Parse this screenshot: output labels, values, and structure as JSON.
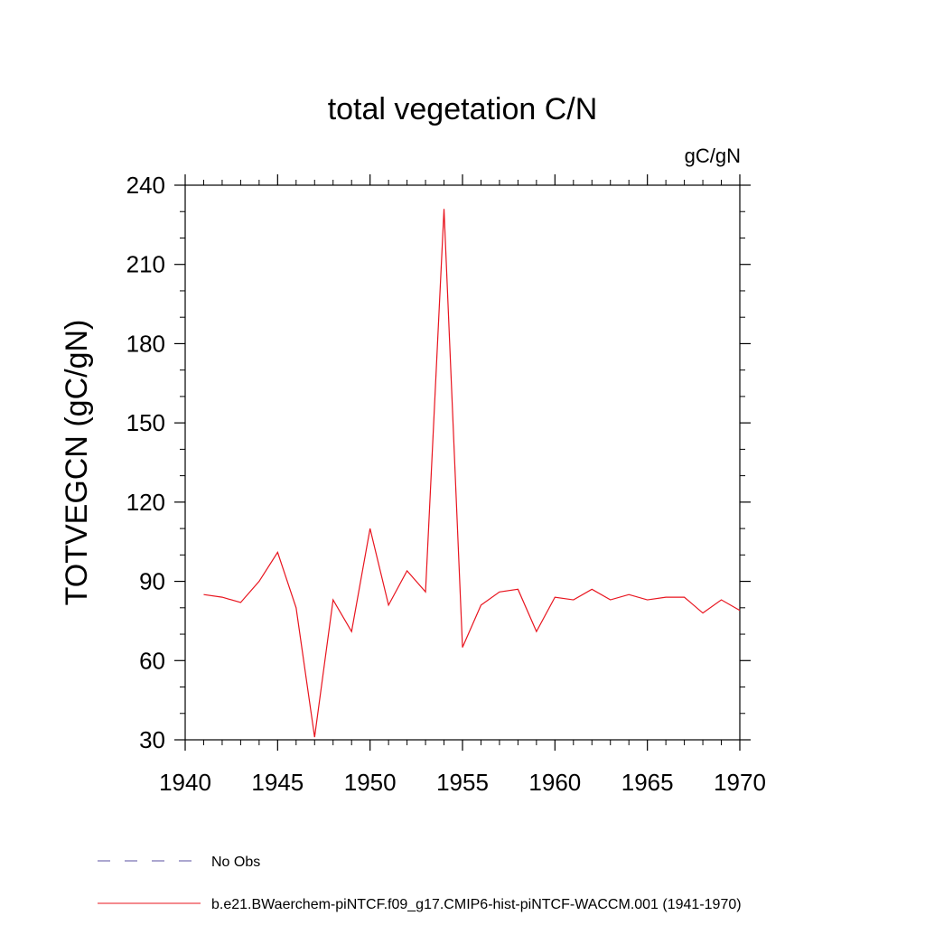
{
  "chart_data": {
    "type": "line",
    "title": "total vegetation C/N",
    "units": "gC/gN",
    "ylabel": "TOTVEGCN  (gC/gN)",
    "xlabel": "",
    "xlim": [
      1940,
      1970
    ],
    "ylim": [
      30,
      240
    ],
    "xticks": [
      1940,
      1945,
      1950,
      1955,
      1960,
      1965,
      1970
    ],
    "xtick_labels": [
      "1940",
      "1945",
      "1950",
      "1955",
      "1960",
      "1965",
      "1970"
    ],
    "yticks": [
      30,
      60,
      90,
      120,
      150,
      180,
      210,
      240
    ],
    "ytick_labels": [
      "30",
      "60",
      "90",
      "120",
      "150",
      "180",
      "210",
      "240"
    ],
    "grid": false,
    "legend_position": "bottom",
    "series": [
      {
        "name": "b.e21.BWaerchem-piNTCF.f09_g17.CMIP6-hist-piNTCF-WACCM.001 (1941-1970)",
        "color": "#e8141e",
        "x": [
          1941,
          1942,
          1943,
          1944,
          1945,
          1946,
          1947,
          1948,
          1949,
          1950,
          1951,
          1952,
          1953,
          1954,
          1955,
          1956,
          1957,
          1958,
          1959,
          1960,
          1961,
          1962,
          1963,
          1964,
          1965,
          1966,
          1967,
          1968,
          1969,
          1970
        ],
        "y": [
          85,
          84,
          82,
          90,
          101,
          80,
          31,
          83,
          71,
          110,
          81,
          94,
          86,
          231,
          65,
          81,
          86,
          87,
          71,
          84,
          83,
          87,
          83,
          85,
          83,
          84,
          84,
          78,
          83,
          79
        ]
      }
    ],
    "legend": [
      {
        "label": "No Obs",
        "color": "#5a4fa0",
        "style": "dashed"
      },
      {
        "label": "b.e21.BWaerchem-piNTCF.f09_g17.CMIP6-hist-piNTCF-WACCM.001 (1941-1970)",
        "color": "#e8141e",
        "style": "solid"
      }
    ]
  }
}
